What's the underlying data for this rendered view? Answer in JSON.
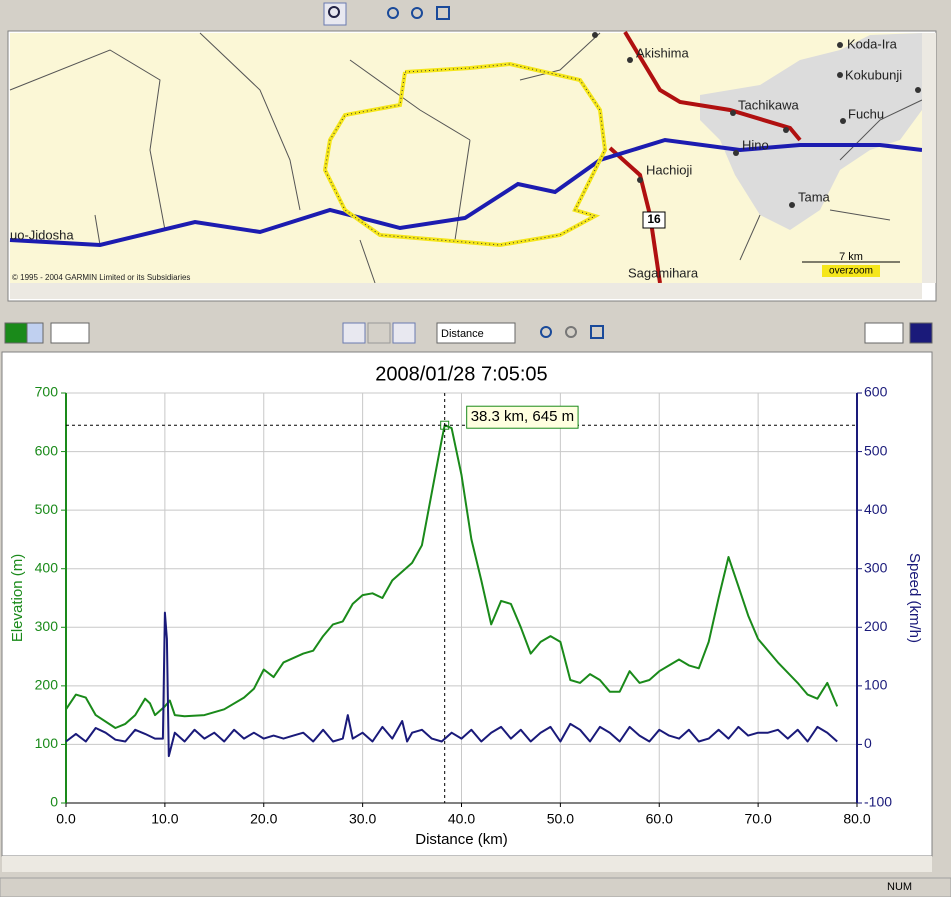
{
  "map": {
    "labels": [
      "Akishima",
      "Koda-Ira",
      "Kokubunji",
      "Tachikawa",
      "Fuchu",
      "Hino",
      "Hachioji",
      "Tama",
      "Sagamihara",
      "16",
      "uo-Jidosha"
    ],
    "copyright": "© 1995 - 2004 GARMIN Limited or its Subsidiaries",
    "scale": "7 km",
    "zoom": "overzoom"
  },
  "chart_toolbar": {
    "axis_mode": "Distance"
  },
  "status": {
    "indicator": "NUM"
  },
  "chart_data": {
    "type": "line",
    "title": "2008/01/28 7:05:05",
    "x_label": "Distance (km)",
    "y_label": "Elevation (m)",
    "y2_label": "Speed (km/h)",
    "xlim": [
      0,
      80
    ],
    "xticks": [
      {
        "value": 0,
        "label": "0.0"
      },
      {
        "value": 10,
        "label": "10.0"
      },
      {
        "value": 20,
        "label": "20.0"
      },
      {
        "value": 30,
        "label": "30.0"
      },
      {
        "value": 40,
        "label": "40.0"
      },
      {
        "value": 50,
        "label": "50.0"
      },
      {
        "value": 60,
        "label": "60.0"
      },
      {
        "value": 70,
        "label": "70.0"
      },
      {
        "value": 80,
        "label": "80.0"
      }
    ],
    "ylim": [
      0,
      700
    ],
    "yticks": [
      0,
      100,
      200,
      300,
      400,
      500,
      600,
      700
    ],
    "y2lim": [
      -100,
      600
    ],
    "y2ticks": [
      -100,
      0,
      100,
      200,
      300,
      400,
      500,
      600
    ],
    "grid": true,
    "series": [
      {
        "name": "Elevation",
        "color": "#1a8a1a",
        "x": [
          0,
          1,
          2,
          3,
          5,
          6,
          7,
          8,
          8.5,
          9,
          10,
          10.5,
          11,
          12,
          14,
          16,
          18,
          19,
          20,
          21,
          22,
          24,
          25,
          26,
          27,
          28,
          29,
          30,
          31,
          32,
          33,
          34,
          35,
          36,
          37,
          38,
          38.3,
          39,
          40,
          41,
          42,
          43,
          44,
          45,
          46,
          47,
          48,
          49,
          50,
          51,
          52,
          53,
          54,
          55,
          56,
          57,
          58,
          59,
          60,
          61,
          62,
          63,
          64,
          65,
          66,
          67,
          68,
          69,
          70,
          72,
          74,
          75,
          76,
          77,
          78
        ],
        "values": [
          160,
          185,
          180,
          150,
          128,
          135,
          150,
          178,
          170,
          150,
          165,
          175,
          150,
          148,
          150,
          160,
          180,
          195,
          228,
          215,
          240,
          255,
          260,
          285,
          305,
          310,
          340,
          355,
          358,
          350,
          380,
          395,
          410,
          440,
          530,
          620,
          645,
          640,
          560,
          450,
          380,
          305,
          345,
          340,
          300,
          255,
          275,
          285,
          275,
          210,
          205,
          220,
          210,
          190,
          190,
          225,
          205,
          210,
          225,
          235,
          245,
          235,
          230,
          275,
          350,
          420,
          370,
          320,
          280,
          240,
          205,
          185,
          178,
          205,
          165
        ]
      },
      {
        "name": "Speed",
        "color": "#1a1a7a",
        "axis": "y2",
        "x": [
          0,
          1,
          2,
          3,
          4,
          5,
          6,
          7,
          8,
          9,
          9.8,
          10,
          10.2,
          10.4,
          11,
          12,
          13,
          14,
          15,
          16,
          17,
          18,
          19,
          20,
          21,
          22,
          23,
          24,
          25,
          26,
          27,
          28,
          28.5,
          29,
          30,
          31,
          32,
          33,
          34,
          34.5,
          35,
          36,
          37,
          38,
          39,
          40,
          41,
          42,
          43,
          44,
          45,
          46,
          47,
          48,
          49,
          50,
          51,
          52,
          53,
          54,
          55,
          56,
          57,
          58,
          59,
          60,
          61,
          62,
          63,
          64,
          65,
          66,
          67,
          68,
          69,
          70,
          71,
          72,
          73,
          74,
          75,
          76,
          77,
          78
        ],
        "values": [
          5,
          18,
          5,
          28,
          20,
          8,
          5,
          25,
          18,
          10,
          10,
          225,
          180,
          -20,
          20,
          5,
          25,
          10,
          20,
          5,
          25,
          10,
          20,
          10,
          15,
          10,
          15,
          20,
          5,
          25,
          5,
          10,
          50,
          10,
          20,
          5,
          30,
          10,
          40,
          5,
          20,
          25,
          10,
          5,
          20,
          10,
          25,
          5,
          20,
          30,
          10,
          25,
          5,
          20,
          30,
          5,
          35,
          25,
          5,
          30,
          20,
          5,
          30,
          15,
          5,
          25,
          15,
          10,
          25,
          5,
          10,
          25,
          10,
          30,
          15,
          20,
          20,
          25,
          10,
          25,
          5,
          30,
          20,
          5
        ]
      }
    ],
    "cursor": {
      "x": 38.3,
      "y": 645,
      "label": "38.3 km, 645 m"
    }
  }
}
